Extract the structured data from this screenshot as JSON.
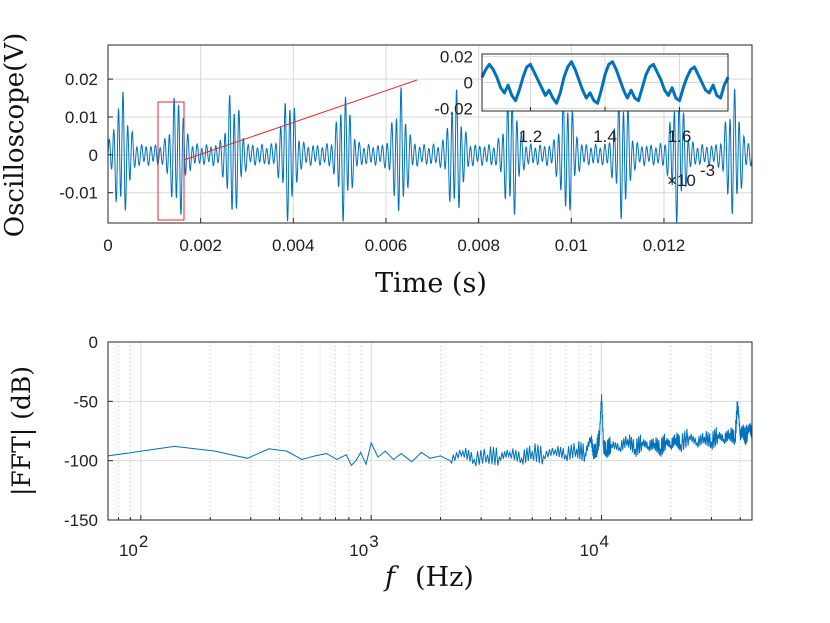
{
  "chart_data": [
    {
      "type": "line",
      "name": "time-domain",
      "title": "",
      "xlabel": "Time (s)",
      "ylabel": "Oscilloscope(V)",
      "xlim": [
        0,
        0.0139
      ],
      "ylim": [
        -0.018,
        0.029
      ],
      "x_ticks": [
        {
          "value": 0,
          "label": "0"
        },
        {
          "value": 0.002,
          "label": "0.002"
        },
        {
          "value": 0.004,
          "label": "0.004"
        },
        {
          "value": 0.006,
          "label": "0.006"
        },
        {
          "value": 0.008,
          "label": "0.008"
        },
        {
          "value": 0.01,
          "label": "0.01"
        },
        {
          "value": 0.012,
          "label": "0.012"
        }
      ],
      "y_ticks": [
        {
          "value": 0.02,
          "label": "0.02"
        },
        {
          "value": 0.01,
          "label": "0.01"
        },
        {
          "value": 0,
          "label": "0"
        },
        {
          "value": -0.01,
          "label": "-0.01"
        }
      ],
      "grid": true,
      "signal": {
        "burst_period_s": 0.0012,
        "first_burst_center_s": 0.0003,
        "burst_width_s": 0.00018,
        "burst_amplitude_v": 0.0155,
        "carrier_frequency_hz": 10000,
        "baseline_amplitude_v": 0.0028,
        "color": "#0072BD"
      },
      "zoom_region": {
        "x_start": 0.00108,
        "x_end": 0.00166,
        "y_min": -0.0175,
        "y_max": 0.0148,
        "color": "#e8262b"
      },
      "connector_line_color": "#e8262b"
    },
    {
      "type": "line",
      "name": "inset",
      "xlim": [
        1.07,
        1.73
      ],
      "ylim": [
        -0.022,
        0.022
      ],
      "x_ticks": [
        {
          "value": 1.2,
          "label": "1.2"
        },
        {
          "value": 1.4,
          "label": "1.4"
        },
        {
          "value": 1.6,
          "label": "1.6"
        }
      ],
      "y_ticks": [
        {
          "value": 0.02,
          "label": "0.02"
        },
        {
          "value": 0,
          "label": "0"
        },
        {
          "value": -0.02,
          "label": "-0.02"
        }
      ],
      "x_exponent_label": "×10",
      "x_exponent_power": "-3",
      "signal": {
        "x": [
          1.07,
          1.08,
          1.09,
          1.1,
          1.11,
          1.12,
          1.13,
          1.14,
          1.15,
          1.16,
          1.17,
          1.18,
          1.19,
          1.2,
          1.21,
          1.22,
          1.23,
          1.24,
          1.25,
          1.26,
          1.27,
          1.28,
          1.29,
          1.3,
          1.31,
          1.32,
          1.33,
          1.34,
          1.35,
          1.36,
          1.37,
          1.38,
          1.39,
          1.4,
          1.41,
          1.42,
          1.43,
          1.44,
          1.45,
          1.46,
          1.47,
          1.48,
          1.49,
          1.5,
          1.51,
          1.52,
          1.53,
          1.54,
          1.55,
          1.56,
          1.57,
          1.58,
          1.59,
          1.6,
          1.61,
          1.62,
          1.63,
          1.64,
          1.65,
          1.66,
          1.67,
          1.68,
          1.69,
          1.7,
          1.71,
          1.72,
          1.73
        ],
        "y": [
          0.004,
          0.01,
          0.014,
          0.01,
          0.004,
          -0.004,
          -0.008,
          -0.002,
          -0.01,
          -0.014,
          -0.006,
          0.004,
          0.012,
          0.014,
          0.008,
          0.002,
          -0.004,
          -0.01,
          -0.006,
          -0.012,
          -0.016,
          -0.008,
          0.004,
          0.012,
          0.016,
          0.01,
          0.002,
          -0.006,
          -0.012,
          -0.008,
          -0.014,
          -0.016,
          -0.006,
          0.006,
          0.014,
          0.016,
          0.01,
          0.002,
          -0.006,
          -0.012,
          -0.006,
          -0.012,
          -0.014,
          -0.004,
          0.006,
          0.012,
          0.014,
          0.008,
          0.002,
          -0.006,
          -0.01,
          -0.004,
          -0.012,
          -0.014,
          -0.004,
          0.004,
          0.01,
          0.012,
          0.006,
          0,
          -0.006,
          -0.008,
          -0.002,
          -0.01,
          -0.012,
          -0.002,
          0.004
        ],
        "color": "#0072BD"
      }
    },
    {
      "type": "line",
      "name": "spectrum",
      "title": "",
      "xlabel_symbol": "f",
      "xlabel": "(Hz)",
      "ylabel": "|FFT| (dB)",
      "xscale": "log",
      "xlim": [
        72,
        45000
      ],
      "ylim": [
        -150,
        0
      ],
      "x_ticks": [
        {
          "value": 100,
          "base": "10",
          "power": "2"
        },
        {
          "value": 1000,
          "base": "10",
          "power": "3"
        },
        {
          "value": 10000,
          "base": "10",
          "power": "4"
        }
      ],
      "y_ticks": [
        {
          "value": 0,
          "label": "0"
        },
        {
          "value": -50,
          "label": "-50"
        },
        {
          "value": -100,
          "label": "-100"
        },
        {
          "value": -150,
          "label": "-150"
        }
      ],
      "grid": true,
      "signal": {
        "x": [
          72,
          140,
          210,
          290,
          360,
          430,
          500,
          570,
          640,
          710,
          780,
          820,
          860,
          900,
          950,
          1000,
          1070,
          1150,
          1250,
          1350,
          1500,
          1650,
          1800,
          2000,
          2200,
          2500,
          2800,
          3200,
          3600,
          4000,
          4500,
          5000,
          5600,
          6300,
          7000,
          7800,
          8500,
          9000,
          9200,
          9500,
          9800,
          10000,
          10200,
          10500,
          11000,
          12000,
          13000,
          14000,
          15000,
          16000,
          17000,
          18000,
          19000,
          20000,
          21000,
          22000,
          24000,
          26000,
          28000,
          30000,
          32000,
          34000,
          36000,
          38000,
          39000,
          40000,
          41000,
          42000,
          43000,
          44000,
          45000
        ],
        "y": [
          -96,
          -88,
          -92,
          -98,
          -90,
          -92,
          -99,
          -96,
          -94,
          -99,
          -95,
          -104,
          -100,
          -93,
          -103,
          -85,
          -97,
          -92,
          -99,
          -94,
          -101,
          -93,
          -98,
          -96,
          -100,
          -92,
          -99,
          -95,
          -97,
          -93,
          -98,
          -92,
          -96,
          -91,
          -95,
          -90,
          -94,
          -80,
          -93,
          -91,
          -79,
          -44,
          -88,
          -91,
          -86,
          -89,
          -82,
          -90,
          -84,
          -88,
          -85,
          -90,
          -83,
          -87,
          -81,
          -86,
          -79,
          -85,
          -80,
          -84,
          -78,
          -82,
          -77,
          -81,
          -50,
          -79,
          -74,
          -80,
          -76,
          -71,
          -78
        ],
        "color": "#0072BD"
      }
    }
  ],
  "colors": {
    "signal": "#0072BD",
    "grid": "#d9d9d9",
    "axes": "#262626",
    "highlight": "#e8262b"
  }
}
